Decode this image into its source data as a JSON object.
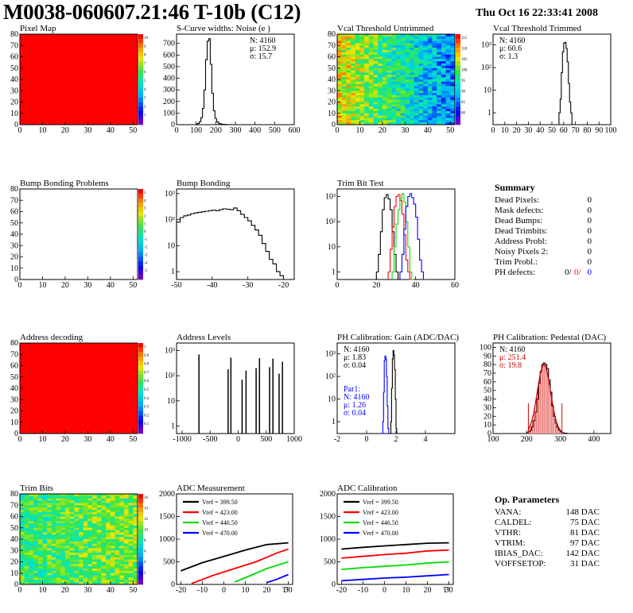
{
  "header": {
    "title": "M0038-060607.21:46 T-10b (C12)",
    "date": "Thu Oct 16 22:33:41 2008"
  },
  "colors": {
    "red": "#ff0000",
    "black": "#000000",
    "green": "#00dd00",
    "blue": "#0000ff",
    "darkred": "#cc0000"
  },
  "chart_data": [
    {
      "type": "heatmap",
      "title": "Pixel Map",
      "xlim": [
        0,
        52
      ],
      "ylim": [
        0,
        80
      ],
      "xticks": [
        0,
        10,
        20,
        30,
        40,
        50
      ],
      "yticks": [
        0,
        10,
        20,
        30,
        40,
        50,
        60,
        70,
        80
      ],
      "map": "uniform",
      "palette_ticks": [
        "10",
        "9",
        "8",
        "7",
        "6",
        "5",
        "4",
        "3",
        "2",
        "1"
      ],
      "zmax": 10
    },
    {
      "type": "histogram",
      "title": "S-Curve widths: Noise (e )",
      "xlim": [
        0,
        600
      ],
      "ylim": [
        0,
        780
      ],
      "log": false,
      "xticks": [
        0,
        100,
        200,
        300,
        400,
        500,
        600
      ],
      "yticks": [
        0,
        100,
        200,
        300,
        400,
        500,
        600,
        700
      ],
      "stats": [
        "N: 4160",
        "μ: 152.9",
        "σ: 15.7"
      ],
      "series": [
        {
          "color": "#000000",
          "x": [
            100,
            108,
            116,
            124,
            132,
            140,
            148,
            156,
            164,
            172,
            180,
            188,
            196,
            204,
            212,
            220,
            228,
            236,
            244,
            252,
            260,
            268,
            276,
            284
          ],
          "values": [
            5,
            10,
            25,
            60,
            140,
            300,
            560,
            720,
            740,
            520,
            270,
            120,
            55,
            25,
            12,
            8,
            4,
            3,
            2,
            1,
            1,
            0,
            1,
            0
          ]
        }
      ]
    },
    {
      "type": "heatmap",
      "title": "Vcal Threshold Untrimmed",
      "xlim": [
        0,
        52
      ],
      "ylim": [
        0,
        80
      ],
      "xticks": [
        0,
        10,
        20,
        30,
        40,
        50
      ],
      "yticks": [
        0,
        10,
        20,
        30,
        40,
        50,
        60,
        70,
        80
      ],
      "map": "noise-gradient",
      "palette_ticks": [
        "115",
        "110",
        "105",
        "100",
        "95",
        "90",
        "85",
        "80"
      ],
      "zmax": 115
    },
    {
      "type": "histogram",
      "title": "Vcal Threshold Trimmed",
      "xlim": [
        0,
        100
      ],
      "ylim": [
        0.3,
        3000
      ],
      "log": true,
      "xticks": [
        0,
        10,
        20,
        30,
        40,
        50,
        60,
        70,
        80,
        90,
        100
      ],
      "yticks": [
        {
          "v": 1,
          "t": "1"
        },
        {
          "v": 10,
          "t": "10"
        },
        {
          "v": 100,
          "t": "10²"
        },
        {
          "v": 1000,
          "t": "10³"
        }
      ],
      "stats": [
        "N: 4160",
        "μ: 60.6",
        "σ:  1.3"
      ],
      "series": [
        {
          "color": "#000000",
          "x": [
            56,
            57,
            58,
            59,
            60,
            61,
            62,
            63,
            64,
            65,
            66
          ],
          "values": [
            1,
            4,
            60,
            500,
            1200,
            1300,
            700,
            180,
            20,
            3,
            1
          ]
        }
      ]
    },
    {
      "type": "heatmap",
      "title": "Bump Bonding Problems",
      "xlim": [
        0,
        52
      ],
      "ylim": [
        0,
        80
      ],
      "xticks": [
        0,
        10,
        20,
        30,
        40,
        50
      ],
      "yticks": [
        0,
        10,
        20,
        30,
        40,
        50,
        60,
        70,
        80
      ],
      "map": "empty",
      "palette_ticks": [
        "5",
        "4",
        "3",
        "2",
        "1",
        "0",
        "-1",
        "-2",
        "-3",
        "-4",
        "-5"
      ],
      "zmax": 5
    },
    {
      "type": "histogram",
      "title": "Bump Bonding",
      "xlim": [
        -50,
        -17
      ],
      "ylim": [
        0.5,
        1500
      ],
      "log": true,
      "xticks": [
        -50,
        -40,
        -30,
        -20
      ],
      "yticks": [
        {
          "v": 1,
          "t": "1"
        },
        {
          "v": 10,
          "t": "10"
        },
        {
          "v": 100,
          "t": "10²"
        },
        {
          "v": 1000,
          "t": "10³"
        }
      ],
      "stats": [],
      "series": [
        {
          "color": "#000000",
          "x": [
            -50,
            -49,
            -48,
            -47,
            -46,
            -45,
            -44,
            -43,
            -42,
            -41,
            -40,
            -39,
            -38,
            -37,
            -36,
            -35,
            -34,
            -33,
            -32,
            -31,
            -30,
            -29,
            -28,
            -27,
            -26,
            -25,
            -24,
            -23,
            -22,
            -21,
            -20
          ],
          "values": [
            80,
            120,
            140,
            150,
            170,
            180,
            190,
            200,
            210,
            220,
            230,
            220,
            240,
            260,
            250,
            240,
            280,
            220,
            160,
            120,
            90,
            60,
            40,
            25,
            12,
            6,
            3,
            2,
            1,
            0.7,
            0.5
          ]
        }
      ]
    },
    {
      "type": "histogram",
      "title": "Trim Bit Test",
      "xlim": [
        0,
        60
      ],
      "ylim": [
        0.5,
        2000
      ],
      "log": true,
      "xticks": [
        0,
        20,
        40,
        60
      ],
      "yticks": [
        {
          "v": 1,
          "t": "1"
        },
        {
          "v": 10,
          "t": "10"
        },
        {
          "v": 100,
          "t": "10²"
        },
        {
          "v": 1000,
          "t": "10³"
        }
      ],
      "stats": [],
      "series": [
        {
          "color": "#000000",
          "x": [
            20,
            21,
            22,
            23,
            24,
            25,
            26,
            27,
            28,
            29,
            30,
            31,
            32
          ],
          "values": [
            1,
            5,
            40,
            300,
            900,
            1200,
            800,
            300,
            40,
            5,
            1,
            0.5,
            0.5
          ]
        },
        {
          "color": "#ff0000",
          "x": [
            26,
            27,
            28,
            29,
            30,
            31,
            32,
            33,
            34,
            35,
            36,
            37
          ],
          "values": [
            1,
            8,
            60,
            400,
            1000,
            1200,
            700,
            200,
            30,
            3,
            1,
            0.5
          ]
        },
        {
          "color": "#00dd00",
          "x": [
            28,
            29,
            30,
            31,
            32,
            33,
            34,
            35,
            36,
            37,
            38
          ],
          "values": [
            1,
            10,
            80,
            300,
            800,
            1300,
            600,
            100,
            10,
            1,
            0.5
          ]
        },
        {
          "color": "#0000ff",
          "x": [
            32,
            33,
            34,
            35,
            36,
            37,
            38,
            39,
            40,
            41,
            42,
            43,
            44
          ],
          "values": [
            1,
            5,
            50,
            400,
            1000,
            1300,
            900,
            500,
            150,
            20,
            3,
            1,
            0.5
          ]
        }
      ]
    },
    {
      "type": "heatmap",
      "title": "Address decoding",
      "xlim": [
        0,
        52
      ],
      "ylim": [
        0,
        80
      ],
      "xticks": [
        0,
        10,
        20,
        30,
        40,
        50
      ],
      "yticks": [
        0,
        10,
        20,
        30,
        40,
        50,
        60,
        70,
        80
      ],
      "map": "uniform",
      "palette_ticks": [
        "1",
        "0.9",
        "0.8",
        "0.7",
        "0.6",
        "0.5",
        "0.4",
        "0.3",
        "0.2",
        "0.1"
      ],
      "zmax": 1
    },
    {
      "type": "histogram",
      "title": "Address Levels",
      "xlim": [
        -1100,
        1000
      ],
      "ylim": [
        0.5,
        2000
      ],
      "log": true,
      "xticks": [
        -1000,
        -500,
        0,
        500,
        1000
      ],
      "yticks": [
        {
          "v": 1,
          "t": "1"
        },
        {
          "v": 10,
          "t": "10"
        },
        {
          "v": 100,
          "t": "10²"
        },
        {
          "v": 1000,
          "t": "10³"
        }
      ],
      "stats": [],
      "spikes": true,
      "series": [
        {
          "color": "#000000",
          "x": [
            -700,
            -180,
            -130,
            70,
            140,
            320,
            380,
            560,
            620,
            730,
            790
          ],
          "values": [
            700,
            180,
            520,
            70,
            160,
            200,
            500,
            220,
            480,
            120,
            360
          ]
        }
      ]
    },
    {
      "type": "histogram",
      "title": "PH Calibration: Gain (ADC/DAC)",
      "xlim": [
        -2,
        6
      ],
      "ylim": [
        0.3,
        3000
      ],
      "log": true,
      "xticks": [
        -2,
        0,
        2,
        4
      ],
      "yticks": [
        {
          "v": 1,
          "t": "1"
        },
        {
          "v": 10,
          "t": "10"
        },
        {
          "v": 100,
          "t": "10²"
        },
        {
          "v": 1000,
          "t": "10³"
        }
      ],
      "stats": [
        "N: 4160",
        "μ: 1.83",
        "σ: 0.04"
      ],
      "stats2": [
        "Par1:",
        "N: 4160",
        "μ: 1.26",
        "σ: 0.04"
      ],
      "series": [
        {
          "color": "#000000",
          "x": [
            1.65,
            1.7,
            1.75,
            1.8,
            1.85,
            1.9,
            1.95,
            2.0
          ],
          "values": [
            1,
            30,
            600,
            1400,
            900,
            200,
            10,
            0.5
          ]
        },
        {
          "color": "#0000ff",
          "x": [
            1.1,
            1.15,
            1.2,
            1.25,
            1.3,
            1.35,
            1.4,
            1.45
          ],
          "values": [
            1,
            20,
            500,
            800,
            600,
            100,
            5,
            0.5
          ]
        }
      ]
    },
    {
      "type": "histogram",
      "title": "PH Calibration: Pedestal (DAC)",
      "xlim": [
        100,
        450
      ],
      "ylim": [
        0,
        105
      ],
      "log": false,
      "xticks": [
        100,
        200,
        300,
        400
      ],
      "yticks": [
        0,
        10,
        20,
        30,
        40,
        50,
        60,
        70,
        80,
        90,
        100
      ],
      "stats": [
        "N: 4160"
      ],
      "stats_red": [
        "μ: 251.4",
        "σ: 19.8"
      ],
      "gauss": {
        "mean": 251.4,
        "sigma": 19.8,
        "amp": 80,
        "from": 205,
        "to": 305
      },
      "series": [
        {
          "color": "#000000",
          "x": [
            200,
            205,
            210,
            215,
            220,
            225,
            230,
            235,
            240,
            245,
            250,
            255,
            260,
            265,
            270,
            275,
            280,
            285,
            290,
            295,
            300,
            305,
            310,
            315
          ],
          "values": [
            1,
            2,
            4,
            8,
            15,
            25,
            40,
            58,
            72,
            80,
            82,
            80,
            75,
            62,
            48,
            32,
            20,
            12,
            7,
            4,
            2,
            1,
            0.5,
            0.5
          ]
        }
      ]
    },
    {
      "type": "heatmap",
      "title": "Trim Bits",
      "xlim": [
        0,
        52
      ],
      "ylim": [
        0,
        80
      ],
      "xticks": [
        0,
        10,
        20,
        30,
        40,
        50
      ],
      "yticks": [
        0,
        10,
        20,
        30,
        40,
        50,
        60,
        70,
        80
      ],
      "map": "trim",
      "palette_ticks": [
        "16",
        "14",
        "12",
        "10",
        "8",
        "6",
        "4",
        "2"
      ],
      "zmax": 16
    },
    {
      "type": "line",
      "title": "ADC Measurement",
      "xlim": [
        -22,
        32
      ],
      "ylim": [
        0,
        2000
      ],
      "log": false,
      "xticks": [
        -20,
        -10,
        0,
        10,
        20,
        30
      ],
      "yticks": [
        0,
        500,
        1000,
        1500,
        2000
      ],
      "xlabel": "T°",
      "legend": [
        {
          "label": "Vref = 399.50",
          "color": "#000000"
        },
        {
          "label": "Vref = 423.00",
          "color": "#ff0000"
        },
        {
          "label": "Vref = 446.50",
          "color": "#00dd00"
        },
        {
          "label": "Vref = 470.00",
          "color": "#0000ff"
        }
      ],
      "series": [
        {
          "color": "#000000",
          "x": [
            -20,
            -10,
            0,
            10,
            20,
            30
          ],
          "values": [
            300,
            480,
            620,
            760,
            880,
            920
          ]
        },
        {
          "color": "#ff0000",
          "x": [
            -15,
            -5,
            5,
            15,
            25,
            30
          ],
          "values": [
            20,
            200,
            350,
            500,
            700,
            780
          ]
        },
        {
          "color": "#00dd00",
          "x": [
            5,
            10,
            20,
            30
          ],
          "values": [
            50,
            150,
            350,
            500
          ]
        },
        {
          "color": "#0000ff",
          "x": [
            20,
            25,
            30
          ],
          "values": [
            40,
            120,
            220
          ]
        }
      ]
    },
    {
      "type": "line",
      "title": "ADC Calibration",
      "xlim": [
        -22,
        32
      ],
      "ylim": [
        0,
        2000
      ],
      "log": false,
      "xticks": [
        -20,
        -10,
        0,
        10,
        20,
        30
      ],
      "yticks": [
        0,
        500,
        1000,
        1500,
        2000
      ],
      "xlabel": "T°",
      "legend": [
        {
          "label": "Vref = 399.50",
          "color": "#000000"
        },
        {
          "label": "Vref = 423.00",
          "color": "#ff0000"
        },
        {
          "label": "Vref = 446.50",
          "color": "#00dd00"
        },
        {
          "label": "Vref = 470.00",
          "color": "#0000ff"
        }
      ],
      "series": [
        {
          "color": "#000000",
          "x": [
            -20,
            -10,
            0,
            10,
            20,
            30
          ],
          "values": [
            780,
            820,
            850,
            880,
            910,
            920
          ]
        },
        {
          "color": "#ff0000",
          "x": [
            -20,
            -10,
            0,
            10,
            20,
            30
          ],
          "values": [
            580,
            620,
            660,
            690,
            740,
            760
          ]
        },
        {
          "color": "#00dd00",
          "x": [
            -20,
            -10,
            0,
            10,
            20,
            30
          ],
          "values": [
            330,
            370,
            400,
            430,
            470,
            500
          ]
        },
        {
          "color": "#0000ff",
          "x": [
            -20,
            -10,
            0,
            10,
            20,
            30
          ],
          "values": [
            80,
            110,
            140,
            160,
            190,
            220
          ]
        }
      ]
    }
  ],
  "summary": {
    "title": "Summary",
    "rows": [
      {
        "label": "Dead Pixels:",
        "value": "0"
      },
      {
        "label": "Mask defects:",
        "value": "0"
      },
      {
        "label": "Dead Bumps:",
        "value": "0"
      },
      {
        "label": "Dead Trimbits:",
        "value": "0"
      },
      {
        "label": "Address Probl:",
        "value": "0"
      },
      {
        "label": "Noisy Pixels 2:",
        "value": "0"
      },
      {
        "label": "Trim Probl.:",
        "value": "0"
      }
    ],
    "ph": {
      "label": "PH defects:",
      "v1": "0/",
      "v2": "0/",
      "v3": "0"
    }
  },
  "params": {
    "title": "Op. Parameters",
    "rows": [
      {
        "label": "VANA:",
        "value": "148 DAC"
      },
      {
        "label": "CALDEL:",
        "value": "75 DAC"
      },
      {
        "label": "VTHR:",
        "value": "81 DAC"
      },
      {
        "label": "VTRIM:",
        "value": "97 DAC"
      },
      {
        "label": "IBIAS_DAC:",
        "value": "142 DAC"
      },
      {
        "label": "VOFFSETOP:",
        "value": "31 DAC"
      }
    ]
  }
}
